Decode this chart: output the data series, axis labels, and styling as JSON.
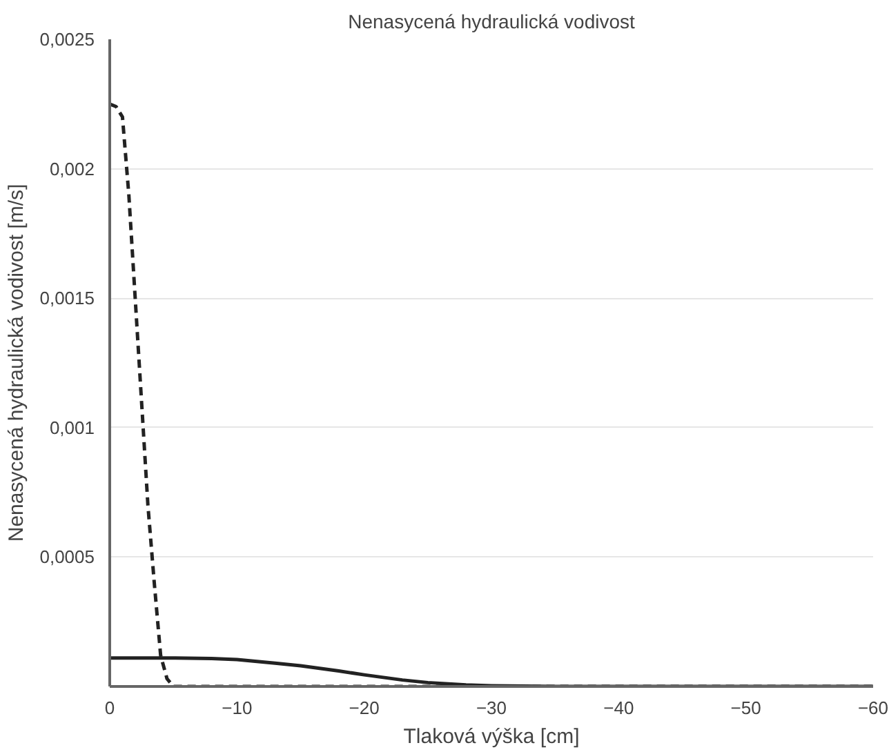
{
  "chart_data": {
    "type": "line",
    "title": "Nenasycená hydraulická vodivost",
    "xlabel": "Tlaková výška [cm]",
    "ylabel": "Nenasycená hydraulická vodivost [m/s]",
    "xlim": [
      0,
      -60
    ],
    "xticks": [
      0,
      -10,
      -20,
      -30,
      -40,
      -50,
      -60
    ],
    "ylim": [
      0,
      0.0025
    ],
    "yticks": [
      {
        "value": 0.0005,
        "label": "0,0005"
      },
      {
        "value": 0.001,
        "label": "0,001"
      },
      {
        "value": 0.0015,
        "label": "0,0015"
      },
      {
        "value": 0.002,
        "label": "0,002"
      },
      {
        "value": 0.0025,
        "label": "0,0025"
      }
    ],
    "grid": "y",
    "series": [
      {
        "color": "#222222",
        "line_style": "dashed",
        "x": [
          0,
          -0.5,
          -1,
          -1.5,
          -2,
          -2.5,
          -3,
          -3.5,
          -4,
          -4.5,
          -5,
          -10,
          -20,
          -30,
          -40,
          -50,
          -60
        ],
        "values": [
          0.00225,
          0.00224,
          0.0022,
          0.0019,
          0.0015,
          0.0011,
          0.0007,
          0.0004,
          0.00012,
          3e-05,
          0,
          0,
          0,
          0,
          0,
          0,
          0
        ]
      },
      {
        "color": "#222222",
        "line_style": "solid",
        "x": [
          0,
          -5,
          -8,
          -10,
          -13,
          -15,
          -18,
          -20,
          -23,
          -25,
          -28,
          -30,
          -35,
          -40,
          -50,
          -60
        ],
        "values": [
          0.00011,
          0.00011,
          0.000108,
          0.000104,
          9e-05,
          8e-05,
          6e-05,
          4.5e-05,
          2.5e-05,
          1.5e-05,
          6e-06,
          3e-06,
          0,
          0,
          0,
          0
        ]
      }
    ]
  }
}
